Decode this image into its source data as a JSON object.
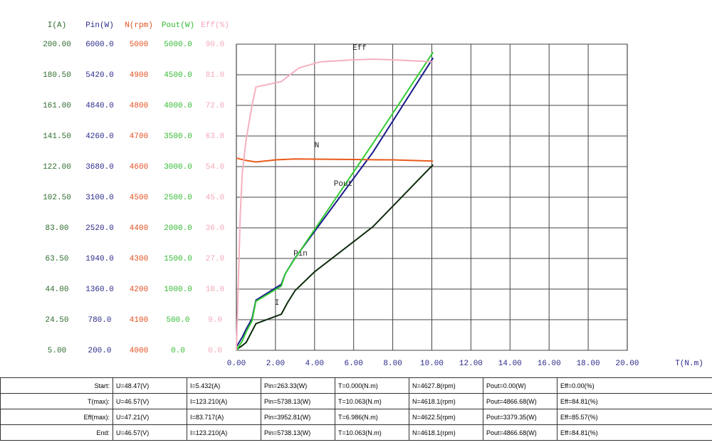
{
  "chart_data": {
    "type": "line",
    "x_label": "T(N.m)",
    "grid": true,
    "xlim": [
      0,
      20
    ],
    "xticks": [
      {
        "value": 0,
        "label": "0.00"
      },
      {
        "value": 2,
        "label": "2.00"
      },
      {
        "value": 4,
        "label": "4.00"
      },
      {
        "value": 6,
        "label": "6.00"
      },
      {
        "value": 8,
        "label": "8.00"
      },
      {
        "value": 10,
        "label": "10.00"
      },
      {
        "value": 12,
        "label": "12.00"
      },
      {
        "value": 14,
        "label": "14.00"
      },
      {
        "value": 16,
        "label": "16.00"
      },
      {
        "value": 18,
        "label": "18.00"
      },
      {
        "value": 20,
        "label": "20.00"
      }
    ],
    "series": [
      {
        "name": "I",
        "axis_label": "I(A)",
        "color": "#0d2a0d",
        "label_color": "#2e6b2e",
        "ylim": [
          5,
          200
        ],
        "yticks": [
          {
            "value": 200,
            "label": "200.00"
          },
          {
            "value": 180.5,
            "label": "180.50"
          },
          {
            "value": 161,
            "label": "161.00"
          },
          {
            "value": 141.5,
            "label": "141.50"
          },
          {
            "value": 122,
            "label": "122.00"
          },
          {
            "value": 102.5,
            "label": "102.50"
          },
          {
            "value": 83,
            "label": "83.00"
          },
          {
            "value": 63.5,
            "label": "63.50"
          },
          {
            "value": 44,
            "label": "44.00"
          },
          {
            "value": 24.5,
            "label": "24.50"
          },
          {
            "value": 5,
            "label": "5.00"
          }
        ],
        "x": [
          0,
          0.3,
          0.5,
          1.0,
          2.3,
          2.6,
          3.0,
          4.0,
          6.986,
          10.063
        ],
        "values": [
          5.432,
          8,
          10,
          22,
          28,
          35,
          43,
          55,
          83.717,
          123.21
        ]
      },
      {
        "name": "Pin",
        "axis_label": "Pin(W)",
        "color": "#1a1a8a",
        "label_color": "#2a2a8a",
        "ylim": [
          200,
          6000
        ],
        "yticks": [
          {
            "value": 6000,
            "label": "6000.0"
          },
          {
            "value": 5420,
            "label": "5420.0"
          },
          {
            "value": 4840,
            "label": "4840.0"
          },
          {
            "value": 4260,
            "label": "4260.0"
          },
          {
            "value": 3680,
            "label": "3680.0"
          },
          {
            "value": 3100,
            "label": "3100.0"
          },
          {
            "value": 2520,
            "label": "2520.0"
          },
          {
            "value": 1940,
            "label": "1940.0"
          },
          {
            "value": 1360,
            "label": "1360.0"
          },
          {
            "value": 780,
            "label": "780.0"
          },
          {
            "value": 200,
            "label": "200.0"
          }
        ],
        "x": [
          0,
          0.3,
          0.5,
          0.8,
          1.0,
          2.3,
          2.5,
          3.0,
          6.986,
          10.063
        ],
        "values": [
          263.33,
          450,
          600,
          800,
          1150,
          1450,
          1650,
          1950,
          3952.81,
          5738.13
        ]
      },
      {
        "name": "N",
        "axis_label": "N(rpm)",
        "color": "#e85a1a",
        "label_color": "#e05020",
        "ylim": [
          4000,
          5000
        ],
        "yticks": [
          5000,
          4900,
          4800,
          4700,
          4600,
          4500,
          4400,
          4300,
          4200,
          4100,
          4000
        ],
        "x": [
          0,
          0.5,
          1.0,
          2.0,
          3.0,
          6.986,
          8.0,
          10.063
        ],
        "values": [
          4627.8,
          4620,
          4615,
          4622,
          4625,
          4622.5,
          4622,
          4618.1
        ]
      },
      {
        "name": "Pout",
        "axis_label": "Pout(W)",
        "color": "#33cc33",
        "label_color": "#33bb33",
        "ylim": [
          0,
          5000
        ],
        "yticks": [
          {
            "value": 5000,
            "label": "5000.0"
          },
          {
            "value": 4500,
            "label": "4500.0"
          },
          {
            "value": 4000,
            "label": "4000.0"
          },
          {
            "value": 3500,
            "label": "3500.0"
          },
          {
            "value": 3000,
            "label": "3000.0"
          },
          {
            "value": 2500,
            "label": "2500.0"
          },
          {
            "value": 2000,
            "label": "2000.0"
          },
          {
            "value": 1500,
            "label": "1500.0"
          },
          {
            "value": 1000,
            "label": "1000.0"
          },
          {
            "value": 500,
            "label": "500.0"
          },
          {
            "value": 0,
            "label": "0.0"
          }
        ],
        "x": [
          0,
          0.3,
          0.5,
          0.8,
          1.0,
          2.3,
          2.5,
          3.0,
          6.986,
          10.063
        ],
        "values": [
          0,
          150,
          300,
          480,
          800,
          1050,
          1250,
          1500,
          3379.35,
          4866.68
        ]
      },
      {
        "name": "Eff",
        "axis_label": "Eff(%)",
        "color": "#f5b0c0",
        "label_color": "#f4a8b8",
        "ylim": [
          0,
          90
        ],
        "yticks": [
          {
            "value": 90,
            "label": "90.0"
          },
          {
            "value": 81,
            "label": "81.0"
          },
          {
            "value": 72,
            "label": "72.0"
          },
          {
            "value": 63,
            "label": "63.0"
          },
          {
            "value": 54,
            "label": "54.0"
          },
          {
            "value": 45,
            "label": "45.0"
          },
          {
            "value": 36,
            "label": "36.0"
          },
          {
            "value": 27,
            "label": "27.0"
          },
          {
            "value": 18,
            "label": "18.0"
          },
          {
            "value": 9,
            "label": "9.0"
          },
          {
            "value": 0,
            "label": "0.0"
          }
        ],
        "x": [
          0,
          0.1,
          0.2,
          0.3,
          0.5,
          0.8,
          1.0,
          2.3,
          3.2,
          4.3,
          6.0,
          6.986,
          8.0,
          9.0,
          10.063
        ],
        "values": [
          0,
          20,
          40,
          52,
          62,
          72,
          77.4,
          79,
          83,
          84.8,
          85.4,
          85.57,
          85.4,
          85.1,
          84.81
        ]
      }
    ]
  },
  "table": {
    "rows": [
      [
        "Start:",
        "U=48.47(V)",
        "I=5.432(A)",
        "Pin=263.33(W)",
        "T=0.000(N.m)",
        "N=4627.8(rpm)",
        "Pout=0.00(W)",
        "Eff=0.00(%)"
      ],
      [
        "T(max):",
        "U=46.57(V)",
        "I=123.210(A)",
        "Pin=5738.13(W)",
        "T=10.063(N.m)",
        "N=4618.1(rpm)",
        "Pout=4866.68(W)",
        "Eff=84.81(%)"
      ],
      [
        "Eff(max):",
        "U=47.21(V)",
        "I=83.717(A)",
        "Pin=3952.81(W)",
        "T=6.986(N.m)",
        "N=4622.5(rpm)",
        "Pout=3379.35(W)",
        "Eff=85.57(%)"
      ],
      [
        "End:",
        "U=46.57(V)",
        "I=123.210(A)",
        "Pin=5738.13(W)",
        "T=10.063(N.m)",
        "N=4618.1(rpm)",
        "Pout=4866.68(W)",
        "Eff=84.81(%)"
      ]
    ]
  }
}
